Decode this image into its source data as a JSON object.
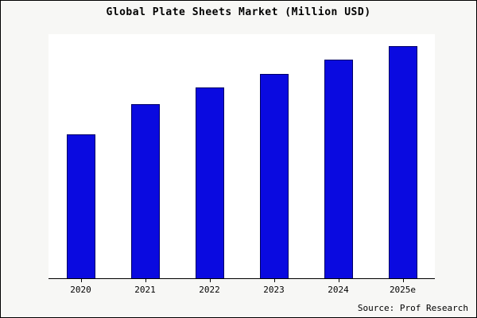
{
  "page": {
    "title": "Global Plate Sheets Market (Million USD)",
    "source": "Source: Prof Research"
  },
  "chart_data": {
    "type": "bar",
    "title": "Global Plate Sheets Market (Million USD)",
    "categories": [
      "2020",
      "2021",
      "2022",
      "2023",
      "2024",
      "2025e"
    ],
    "values": [
      62,
      75,
      82,
      88,
      94,
      100
    ],
    "xlabel": "",
    "ylabel": "",
    "ylim": [
      0,
      105
    ],
    "grid": false,
    "legend": false,
    "bar_color": "#0a0ae0",
    "annotation": "Source: Prof Research"
  }
}
